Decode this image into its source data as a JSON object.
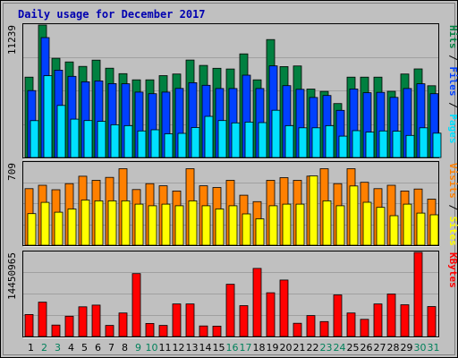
{
  "chart_data": [
    {
      "type": "bar",
      "title": "Daily usage for December 2017",
      "categories": [
        "1",
        "2",
        "3",
        "4",
        "5",
        "6",
        "7",
        "8",
        "9",
        "10",
        "11",
        "12",
        "13",
        "14",
        "15",
        "16",
        "17",
        "18",
        "19",
        "20",
        "21",
        "22",
        "23",
        "24",
        "25",
        "26",
        "27",
        "28",
        "29",
        "30",
        "31"
      ],
      "weekend_days": [
        "2",
        "3",
        "9",
        "10",
        "16",
        "17",
        "23",
        "24",
        "30",
        "31"
      ],
      "ymax_label": "11239",
      "ylim": [
        0,
        11239
      ],
      "legend": [
        "Pages",
        "Files",
        "Hits"
      ],
      "legend_separator": " / ",
      "series": [
        {
          "name": "Hits",
          "color": "#008040",
          "values": [
            6818,
            11239,
            8420,
            8113,
            7729,
            8265,
            7579,
            7118,
            6589,
            6589,
            6951,
            7085,
            8266,
            7816,
            7571,
            7514,
            8796,
            6589,
            10012,
            7714,
            7770,
            5806,
            5612,
            4578,
            6818,
            6818,
            6818,
            5617,
            7085,
            7518,
            6087
          ]
        },
        {
          "name": "Files",
          "color": "#0040ff",
          "values": [
            5678,
            10174,
            7412,
            6884,
            6421,
            6497,
            6271,
            6256,
            5554,
            5416,
            5554,
            5860,
            6346,
            6129,
            5857,
            5857,
            6983,
            5857,
            7775,
            6095,
            5790,
            5095,
            5264,
            4000,
            5817,
            5500,
            5530,
            5100,
            5855,
            6255,
            5418
          ]
        },
        {
          "name": "Pages",
          "color": "#00e0ff",
          "values": [
            3130,
            6944,
            4420,
            3258,
            3137,
            3065,
            2783,
            2701,
            2259,
            2355,
            2014,
            2053,
            2542,
            3492,
            3136,
            2939,
            3008,
            2960,
            4010,
            2701,
            2522,
            2524,
            2701,
            1816,
            2280,
            2157,
            2259,
            2230,
            1879,
            2521,
            2065
          ]
        }
      ]
    },
    {
      "type": "bar",
      "ymax_label": "709",
      "ylim": [
        0,
        709
      ],
      "legend": [
        "Sites",
        "Visits"
      ],
      "legend_separator": " / ",
      "series": [
        {
          "name": "Visits",
          "color": "#ff8000",
          "values": [
            487,
            516,
            478,
            530,
            594,
            559,
            584,
            659,
            479,
            530,
            512,
            467,
            659,
            512,
            497,
            559,
            431,
            375,
            559,
            582,
            559,
            595,
            659,
            530,
            659,
            542,
            487,
            516,
            467,
            484,
            397
          ]
        },
        {
          "name": "Sites",
          "color": "#ffff00",
          "values": [
            272,
            369,
            284,
            312,
            389,
            382,
            382,
            382,
            354,
            340,
            354,
            340,
            382,
            340,
            312,
            340,
            270,
            227,
            340,
            354,
            354,
            597,
            382,
            340,
            510,
            370,
            326,
            254,
            354,
            277,
            262
          ]
        }
      ]
    },
    {
      "type": "bar",
      "ymax_label": "14450965",
      "ylim": [
        0,
        14450965
      ],
      "legend": [
        "KBytes"
      ],
      "legend_separator": " / ",
      "series": [
        {
          "name": "KBytes",
          "color": "#ff0000",
          "values": [
            3785000,
            5900000,
            1968000,
            3484000,
            5106000,
            5400000,
            1900000,
            4042000,
            10800000,
            2250000,
            1900000,
            5600000,
            5600000,
            1818000,
            1790000,
            8980000,
            5300000,
            11700000,
            7522000,
            9700000,
            2272000,
            3600000,
            2570000,
            7150000,
            4042000,
            2950000,
            5600000,
            7300000,
            5454000,
            14450965,
            5150000
          ]
        }
      ]
    }
  ]
}
